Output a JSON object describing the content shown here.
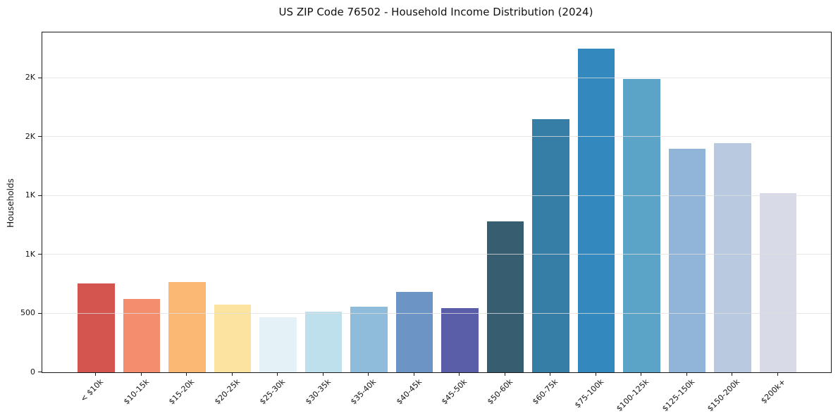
{
  "figure": {
    "background": "#ffffff",
    "spine_color": "#1a1a1a",
    "gridline_color": "#e3e3e3"
  },
  "chart_data": {
    "type": "bar",
    "title": "US ZIP Code 76502 - Household Income Distribution (2024)",
    "xlabel": "",
    "ylabel": "Households",
    "legend": "none",
    "grid": "horizontal, drawn above bars",
    "ylim": [
      0,
      2887.5
    ],
    "yticks": [
      {
        "value": 0,
        "label": "0"
      },
      {
        "value": 500,
        "label": "500"
      },
      {
        "value": 1000,
        "label": "1K"
      },
      {
        "value": 1500,
        "label": "1K"
      },
      {
        "value": 2000,
        "label": "2K"
      },
      {
        "value": 2500,
        "label": "2K"
      }
    ],
    "categories": [
      "< $10k",
      "$10-15k",
      "$15-20k",
      "$20-25k",
      "$25-30k",
      "$30-35k",
      "$35-40k",
      "$40-45k",
      "$45-50k",
      "$50-60k",
      "$60-75k",
      "$75-100k",
      "$100-125k",
      "$125-150k",
      "$150-200k",
      "$200k+"
    ],
    "values": [
      755,
      625,
      770,
      575,
      470,
      515,
      560,
      685,
      545,
      1280,
      2150,
      2750,
      2490,
      1900,
      1950,
      1520
    ],
    "bar_colors": [
      "#d4554f",
      "#f48c6e",
      "#fbb874",
      "#fce3a0",
      "#e4f1f7",
      "#bde0ec",
      "#8fbcdb",
      "#6c94c5",
      "#5a5ea8",
      "#365e70",
      "#377ea6",
      "#3388bd",
      "#5ba3c7",
      "#90b5d8",
      "#b8c9e0",
      "#d8dae8"
    ]
  }
}
